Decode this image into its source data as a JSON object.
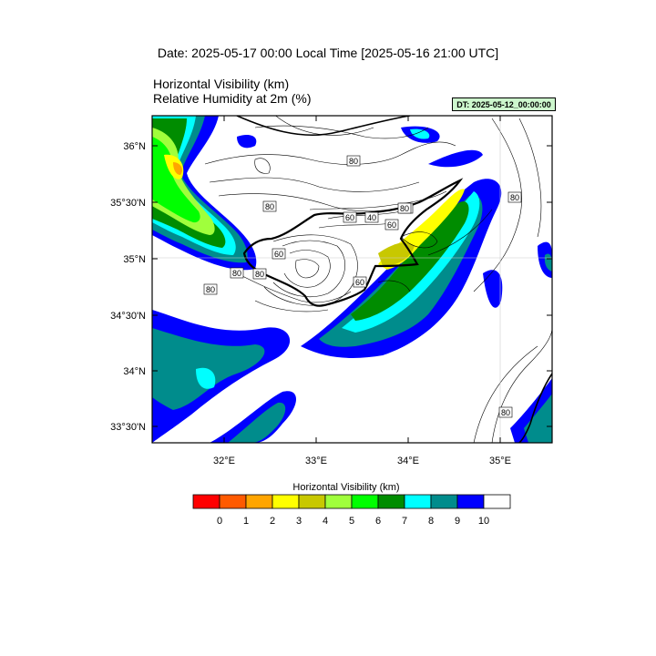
{
  "header": {
    "date_line": "Date: 2025-05-17  00:00 Local Time [2025-05-16  21:00 UTC]",
    "title_line_1": "Horizontal Visibility   (km)",
    "title_line_2": "Relative Humidity at 2m   (%)",
    "dt_badge": "DT: 2025-05-12_00:00:00"
  },
  "map": {
    "lat_labels": [
      "36°N",
      "35°30'N",
      "35°N",
      "34°30'N",
      "34°N",
      "33°30'N"
    ],
    "lon_labels": [
      "32°E",
      "33°E",
      "34°E",
      "35°E"
    ],
    "contour_labels": [
      "80",
      "80",
      "80",
      "60",
      "60",
      "60",
      "60",
      "80",
      "80",
      "60",
      "40",
      "80",
      "80",
      "80"
    ]
  },
  "colorbar": {
    "title": "Horizontal Visibility  (km)",
    "labels": [
      "0",
      "1",
      "2",
      "3",
      "4",
      "5",
      "6",
      "7",
      "8",
      "9",
      "10"
    ],
    "colors": [
      "#ff0000",
      "#ff5a00",
      "#ffa500",
      "#ffff00",
      "#c8c800",
      "#a0ff3c",
      "#00ff00",
      "#008c00",
      "#00ffff",
      "#008c8c",
      "#0000ff",
      "#ffffff"
    ]
  }
}
